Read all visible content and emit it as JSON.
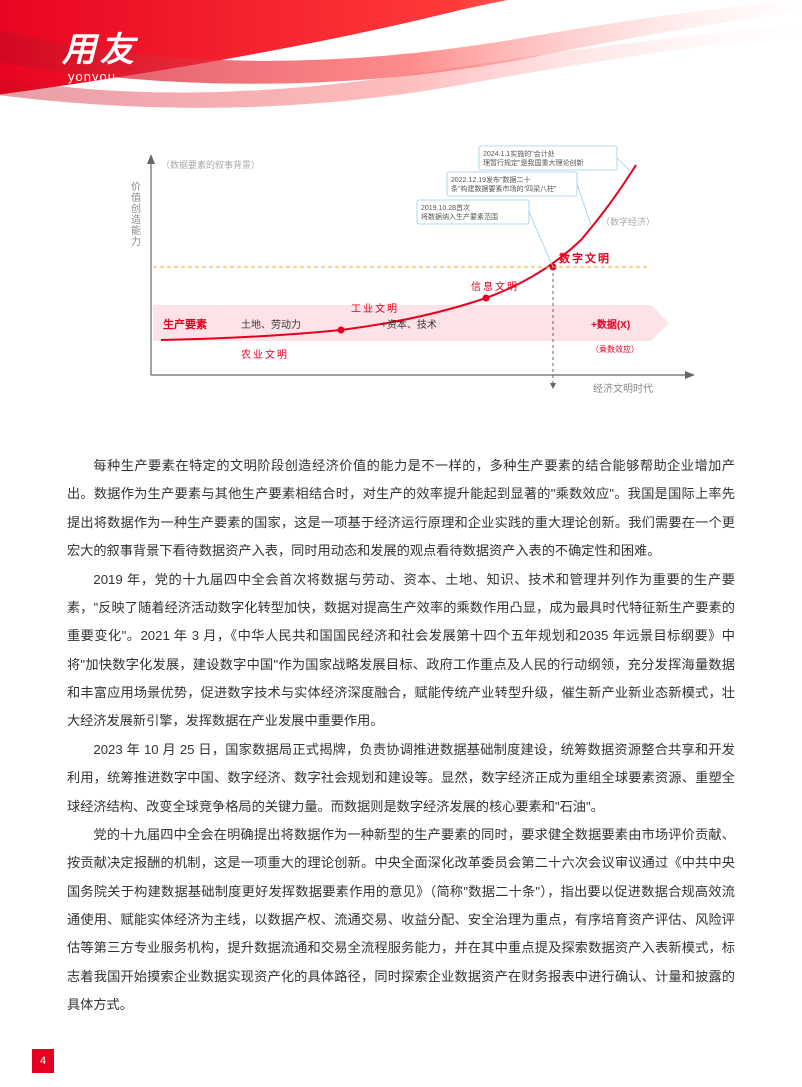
{
  "logo": {
    "cn": "用友",
    "en": "yonyou"
  },
  "chart": {
    "type": "line",
    "background_color": "#ffffff",
    "axis_color": "#666666",
    "y_axis_label": "价值创造能力",
    "y_axis_sublabel": "（数据要素的叙事背景）",
    "x_axis_label": "经济文明时代",
    "future_label": "（数字经济）",
    "band": {
      "label": "生产要素",
      "fill": "#fde3e8",
      "items": [
        {
          "label": "土地、劳动力",
          "sub": "农业文明"
        },
        {
          "label": "+资本、技术",
          "civ": "工业文明"
        },
        {
          "label": "",
          "civ": "信息文明"
        },
        {
          "label": "+数据(X)",
          "civ": "数字文明",
          "note": "（乘数效应）"
        }
      ]
    },
    "curve_color": "#e6001f",
    "dashed_color": "#f2a833",
    "annotations": [
      {
        "text": "2019.10.28首次将数据纳入生产要素范围"
      },
      {
        "text": "2022.12.19发布\"数据二十条\"构建数据要素市场的\"四梁八柱\""
      },
      {
        "text": "2024.1.1实施的\"会计处理暂行规定\"是我国重大理论创新"
      }
    ],
    "anno_box_border": "#9ccce8",
    "label_color": "#e6001f",
    "axis_label_color": "#888888",
    "civ_label_color": "#e6001f",
    "font_size_axis": 10,
    "font_size_small": 8
  },
  "paragraphs": [
    "每种生产要素在特定的文明阶段创造经济价值的能力是不一样的，多种生产要素的结合能够帮助企业增加产出。数据作为生产要素与其他生产要素相结合时，对生产的效率提升能起到显著的\"乘数效应\"。我国是国际上率先提出将数据作为一种生产要素的国家，这是一项基于经济运行原理和企业实践的重大理论创新。我们需要在一个更宏大的叙事背景下看待数据资产入表，同时用动态和发展的观点看待数据资产入表的不确定性和困难。",
    "2019 年，党的十九届四中全会首次将数据与劳动、资本、土地、知识、技术和管理并列作为重要的生产要素，\"反映了随着经济活动数字化转型加快，数据对提高生产效率的乘数作用凸显，成为最具时代特征新生产要素的重要变化\"。2021 年 3 月，《中华人民共和国国民经济和社会发展第十四个五年规划和2035 年远景目标纲要》中将\"加快数字化发展，建设数字中国\"作为国家战略发展目标、政府工作重点及人民的行动纲领，充分发挥海量数据和丰富应用场景优势，促进数字技术与实体经济深度融合，赋能传统产业转型升级，催生新产业新业态新模式，壮大经济发展新引擎，发挥数据在产业发展中重要作用。",
    "2023 年 10 月 25 日，国家数据局正式揭牌，负责协调推进数据基础制度建设，统筹数据资源整合共享和开发利用，统筹推进数字中国、数字经济、数字社会规划和建设等。显然，数字经济正成为重组全球要素资源、重塑全球经济结构、改变全球竞争格局的关键力量。而数据则是数字经济发展的核心要素和\"石油\"。",
    "党的十九届四中全会在明确提出将数据作为一种新型的生产要素的同时，要求健全数据要素由市场评价贡献、按贡献决定报酬的机制，这是一项重大的理论创新。中央全面深化改革委员会第二十六次会议审议通过《中共中央国务院关于构建数据基础制度更好发挥数据要素作用的意见》（简称\"数据二十条\"），指出要以促进数据合规高效流通使用、赋能实体经济为主线，以数据产权、流通交易、收益分配、安全治理为重点，有序培育资产评估、风险评估等第三方专业服务机构，提升数据流通和交易全流程服务能力，并在其中重点提及探索数据资产入表新模式，标志着我国开始摸索企业数据实现资产化的具体路径，同时探索企业数据资产在财务报表中进行确认、计量和披露的具体方式。"
  ],
  "page_number": "4",
  "colors": {
    "brand_red": "#e6001f",
    "text": "#333333"
  }
}
